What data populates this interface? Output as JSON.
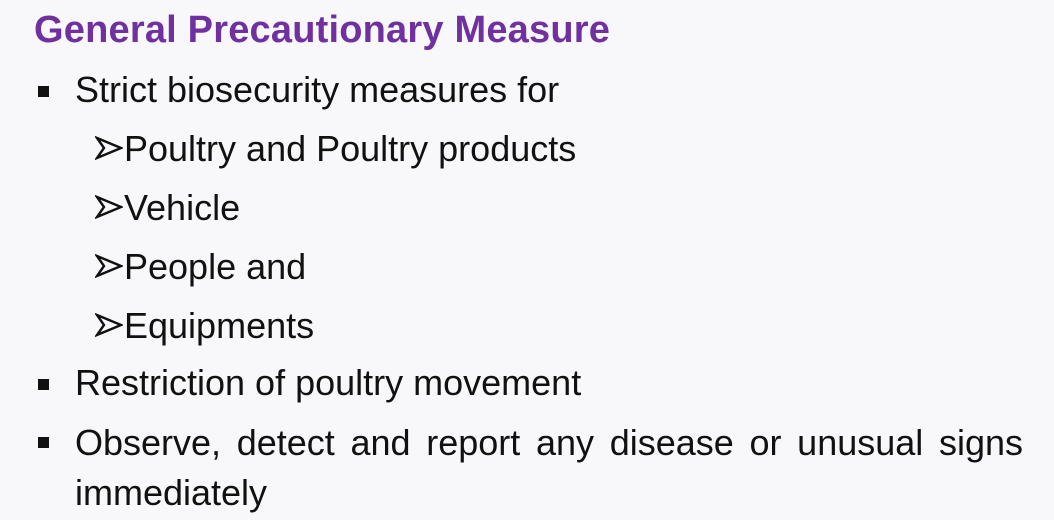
{
  "slide": {
    "title": "General Precautionary Measure",
    "title_color": "#7030a0",
    "bullets": [
      {
        "text": "Strict biosecurity measures for",
        "sub_items": [
          "Poultry and Poultry products",
          "Vehicle",
          "People and",
          "Equipments"
        ]
      },
      {
        "text": "Restriction of poultry movement"
      },
      {
        "text": "Observe, detect and report any disease or unusual signs immediately"
      }
    ],
    "bullet_icon": "square-bullet-icon",
    "sub_bullet_icon": "arrowhead-bullet-icon"
  }
}
